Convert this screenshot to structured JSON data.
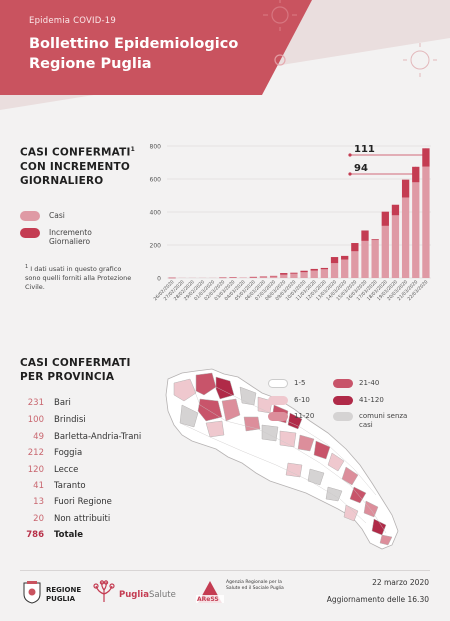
{
  "header": {
    "kicker": "Epidemia COVID-19",
    "title_line1": "Bollettino Epidemiologico",
    "title_line2": "Regione Puglia"
  },
  "colors": {
    "header_bg": "#c9535f",
    "casi": "#df9aa5",
    "incremento": "#c43c52",
    "page_bg": "#f3f2f2"
  },
  "chart_section": {
    "title_line1": "CASI CONFERMATI",
    "title_sup": "1",
    "title_line2": "CON INCREMENTO",
    "title_line3": "GIORNALIERO",
    "legend_casi": "Casi",
    "legend_incremento": "Incremento Giornaliero",
    "footnote_sup": "1",
    "footnote": "I dati usati in questo grafico sono quelli forniti alla Protezione Civile."
  },
  "chart_data": {
    "type": "bar",
    "stacked": true,
    "ylim": [
      0,
      800
    ],
    "yticks": [
      0,
      200,
      400,
      600,
      800
    ],
    "grid": true,
    "categories": [
      "26/02/2020",
      "27/02/2020",
      "28/02/2020",
      "29/02/2020",
      "01/03/2020",
      "02/03/2020",
      "03/03/2020",
      "04/03/2020",
      "05/03/2020",
      "06/03/2020",
      "07/03/2020",
      "08/03/2020",
      "09/03/2020",
      "10/03/2020",
      "11/03/2020",
      "12/03/2020",
      "13/03/2020",
      "14/03/2020",
      "15/03/2020",
      "16/03/2020",
      "17/03/2020",
      "18/03/2020",
      "19/03/2020",
      "20/03/2020",
      "21/03/2020",
      "22/03/2020"
    ],
    "series": [
      {
        "name": "Casi",
        "values": [
          1,
          1,
          1,
          1,
          1,
          2,
          3,
          3,
          5,
          7,
          10,
          20,
          26,
          35,
          45,
          53,
          90,
          112,
          162,
          225,
          230,
          316,
          380,
          488,
          580,
          675
        ]
      },
      {
        "name": "Incremento Giornaliero",
        "values": [
          1,
          0,
          0,
          0,
          0,
          1,
          1,
          0,
          2,
          2,
          3,
          10,
          6,
          9,
          10,
          8,
          37,
          22,
          50,
          63,
          5,
          86,
          64,
          108,
          94,
          111
        ]
      }
    ],
    "annotations": [
      {
        "label": "111",
        "category": "22/03/2020"
      },
      {
        "label": "94",
        "category": "21/03/2020"
      }
    ]
  },
  "province_section": {
    "title_line1": "CASI CONFERMATI",
    "title_line2": "PER PROVINCIA",
    "rows": [
      {
        "value": "231",
        "name": "Bari"
      },
      {
        "value": "100",
        "name": "Brindisi"
      },
      {
        "value": "49",
        "name": "Barletta-Andria-Trani"
      },
      {
        "value": "212",
        "name": "Foggia"
      },
      {
        "value": "120",
        "name": "Lecce"
      },
      {
        "value": "41",
        "name": "Taranto"
      },
      {
        "value": "13",
        "name": "Fuori Regione"
      },
      {
        "value": "20",
        "name": "Non attribuiti"
      }
    ],
    "total": {
      "value": "786",
      "name": "Totale"
    }
  },
  "map_legend": [
    {
      "label": "1-5",
      "color": "#ffffff"
    },
    {
      "label": "6-10",
      "color": "#efc8ce"
    },
    {
      "label": "11-20",
      "color": "#dc8e9b"
    },
    {
      "label": "21-40",
      "color": "#c8546a"
    },
    {
      "label": "41-120",
      "color": "#b02a48"
    },
    {
      "label": "comuni senza casi",
      "color": "#d5d3d3"
    }
  ],
  "footer": {
    "logo_regione": "REGIONE PUGLIA",
    "logo_pugliasalute_bold": "Puglia",
    "logo_pugliasalute_light": "Salute",
    "logo_aress_mark": "AReSS",
    "logo_aress_text": "Agenzia Regionale per la Salute ed il Sociale Puglia",
    "date": "22 marzo 2020",
    "update": "Aggiornamento delle 16.30"
  }
}
